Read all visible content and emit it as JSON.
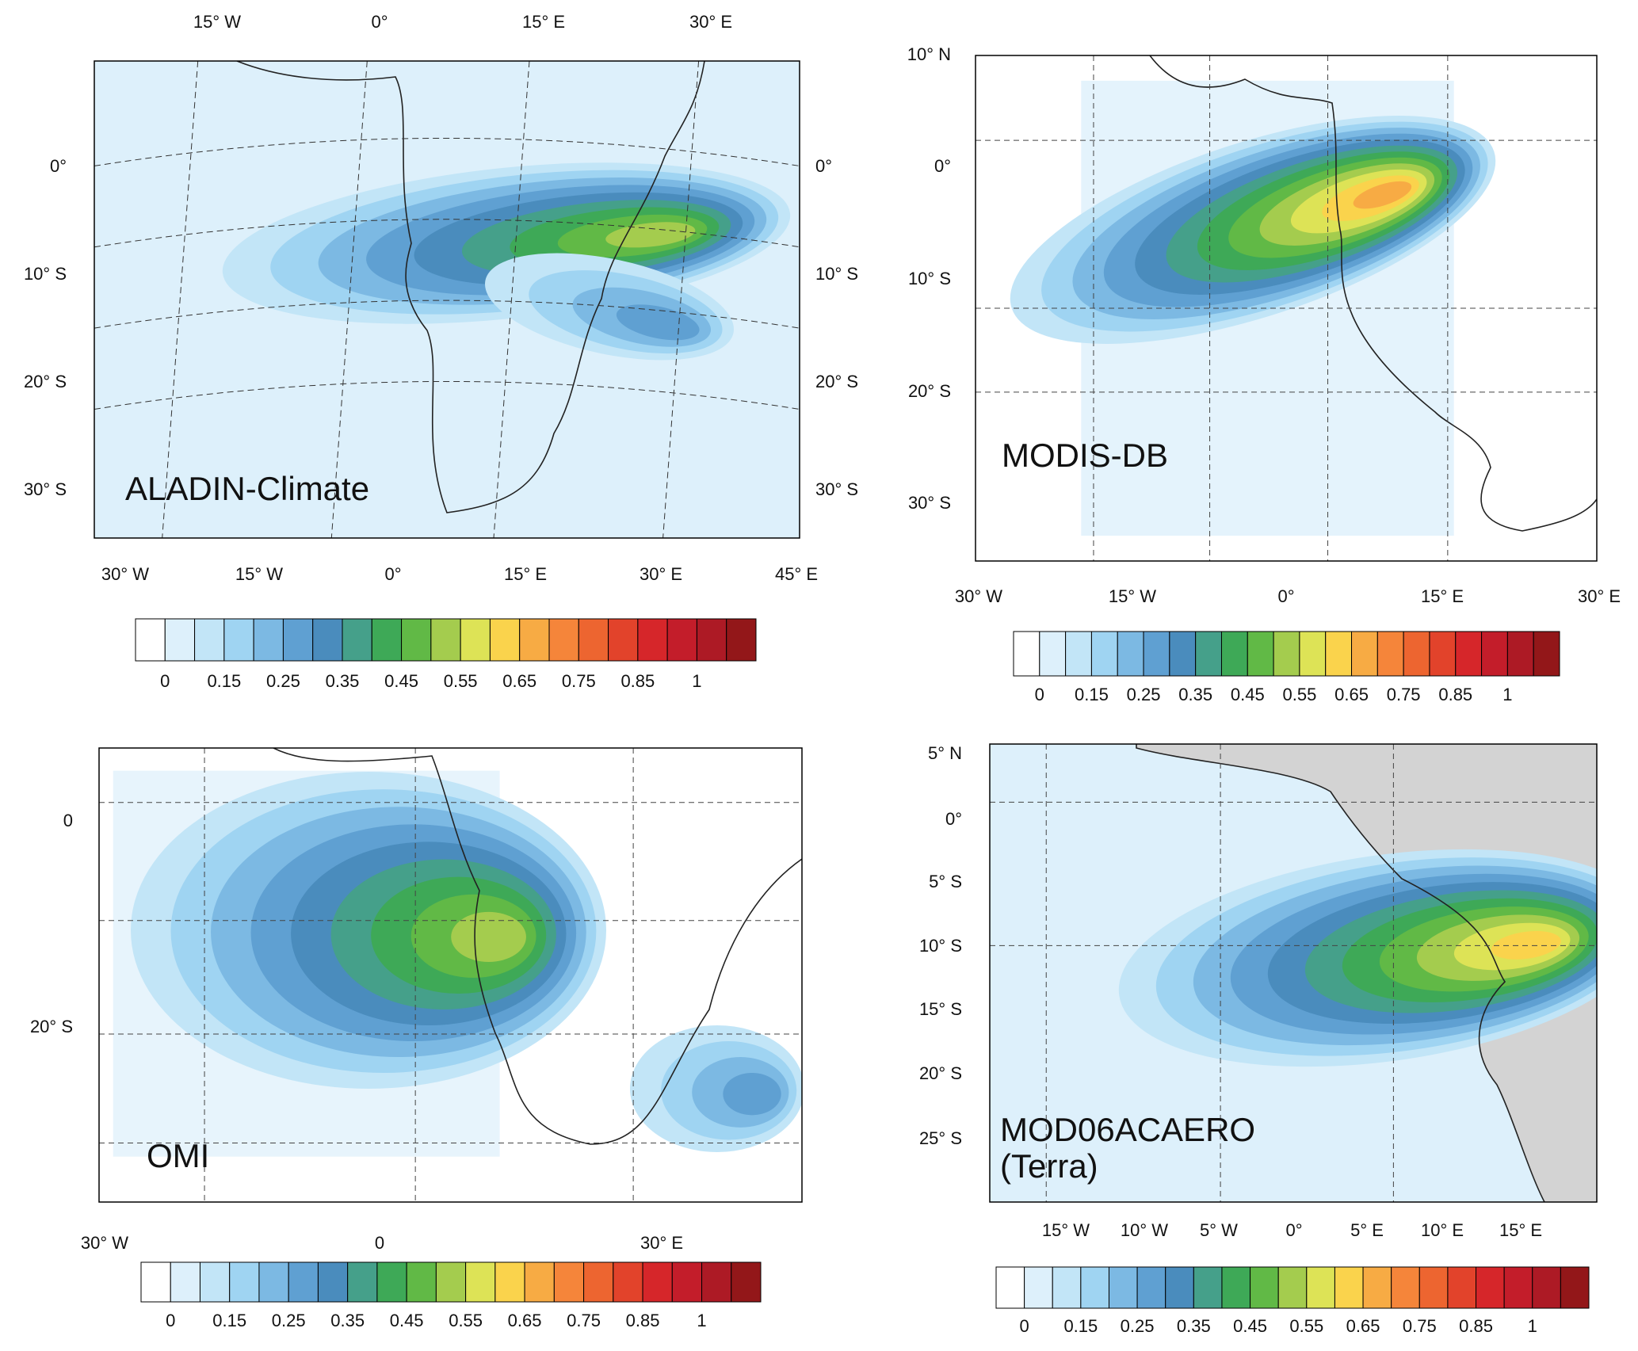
{
  "panels": [
    {
      "label": [
        "ALADIN-Climate"
      ],
      "top": [
        "15° W",
        "0°",
        "15° E",
        "30° E"
      ],
      "bottom": [
        "30° W",
        "15° W",
        "0°",
        "15° E",
        "30° E",
        "45° E"
      ],
      "left": [
        "0°",
        "10° S",
        "20° S",
        "30° S"
      ],
      "right": [
        "0°",
        "10° S",
        "20° S",
        "30° S"
      ]
    },
    {
      "label": [
        "MODIS-DB"
      ],
      "top": [],
      "bottom": [
        "30° W",
        "15° W",
        "0°",
        "15° E",
        "30° E"
      ],
      "left": [
        "10° N",
        "0°",
        "10° S",
        "20° S",
        "30° S"
      ],
      "right": []
    },
    {
      "label": [
        "OMI"
      ],
      "top": [],
      "bottom": [
        "30° W",
        "0",
        "30° E"
      ],
      "left": [
        "0",
        "20° S"
      ],
      "right": []
    },
    {
      "label": [
        "MOD06ACAERO",
        "(Terra)"
      ],
      "top": [],
      "bottom": [
        "15° W",
        "10° W",
        "5° W",
        "0°",
        "5° E",
        "10° E",
        "15° E"
      ],
      "left": [
        "5° N",
        "0°",
        "5° S",
        "10° S",
        "15° S",
        "20° S",
        "25° S"
      ],
      "right": []
    }
  ],
  "colorbar": {
    "colors": [
      "#ffffff",
      "#ddf0fb",
      "#c2e5f7",
      "#9fd4f2",
      "#7cb9e3",
      "#5fa0d2",
      "#4a8cbd",
      "#45a08a",
      "#3ea957",
      "#61b946",
      "#a4cc4e",
      "#dde356",
      "#fad34c",
      "#f7ab44",
      "#f5853a",
      "#ed6530",
      "#e2432b",
      "#d6262a",
      "#c31d2a",
      "#ad1a25",
      "#931719"
    ],
    "labels": [
      "0",
      "0.15",
      "0.25",
      "0.35",
      "0.45",
      "0.55",
      "0.65",
      "0.75",
      "0.85",
      "1"
    ]
  }
}
